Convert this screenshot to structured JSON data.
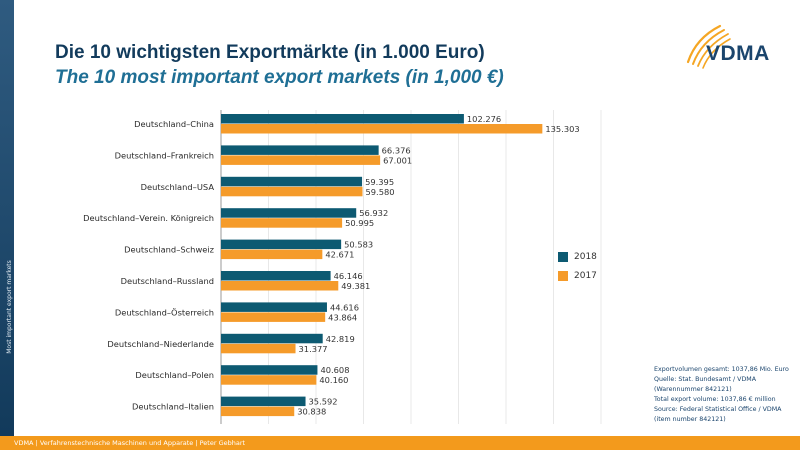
{
  "slide": {
    "title_de": "Die 10 wichtigsten Exportmärkte (in 1.000 Euro)",
    "title_en": "The 10 most important export markets (in 1,000 €)",
    "logo_text": "VDMA",
    "side_label": "Most important export markets",
    "footer": "VDMA | Verfahrenstechnische Maschinen und Apparate | Peter Gebhart",
    "notes": [
      "Exportvolumen gesamt: 1037,86 Mio. Euro",
      "Quelle: Stat. Bundesamt / VDMA",
      "(Warennummer 842121)",
      "Total export volume: 1037,86 € million",
      "Source: Federal Statistical Office / VDMA",
      "(item number 842121)"
    ]
  },
  "colors": {
    "series_2018": "#0d5a72",
    "series_2017": "#f59b2a",
    "navy": "#123b5c",
    "accent_blue": "#1f6f95",
    "footer_orange": "#f39a1c",
    "logo_orange": "#f5a623"
  },
  "chart_data": {
    "type": "bar",
    "orientation": "horizontal",
    "categories": [
      "Deutschland–China",
      "Deutschland–Frankreich",
      "Deutschland–USA",
      "Deutschland–Verein. Königreich",
      "Deutschland–Schweiz",
      "Deutschland–Russland",
      "Deutschland–Österreich",
      "Deutschland–Niederlande",
      "Deutschland–Polen",
      "Deutschland–Italien"
    ],
    "series": [
      {
        "name": "2018",
        "values": [
          102276,
          66376,
          59395,
          56932,
          50583,
          46146,
          44616,
          42819,
          40608,
          35592
        ],
        "labels": [
          "102.276",
          "66.376",
          "59.395",
          "56.932",
          "50.583",
          "46.146",
          "44.616",
          "42.819",
          "40.608",
          "35.592"
        ]
      },
      {
        "name": "2017",
        "values": [
          135303,
          67001,
          59580,
          50995,
          42671,
          49381,
          43864,
          31377,
          40160,
          30838
        ],
        "labels": [
          "135.303",
          "67.001",
          "59.580",
          "50.995",
          "42.671",
          "49.381",
          "43.864",
          "31.377",
          "40.160",
          "30.838"
        ]
      }
    ],
    "xlim": [
      0,
      160000
    ],
    "grid": true,
    "legend_position": "right"
  }
}
